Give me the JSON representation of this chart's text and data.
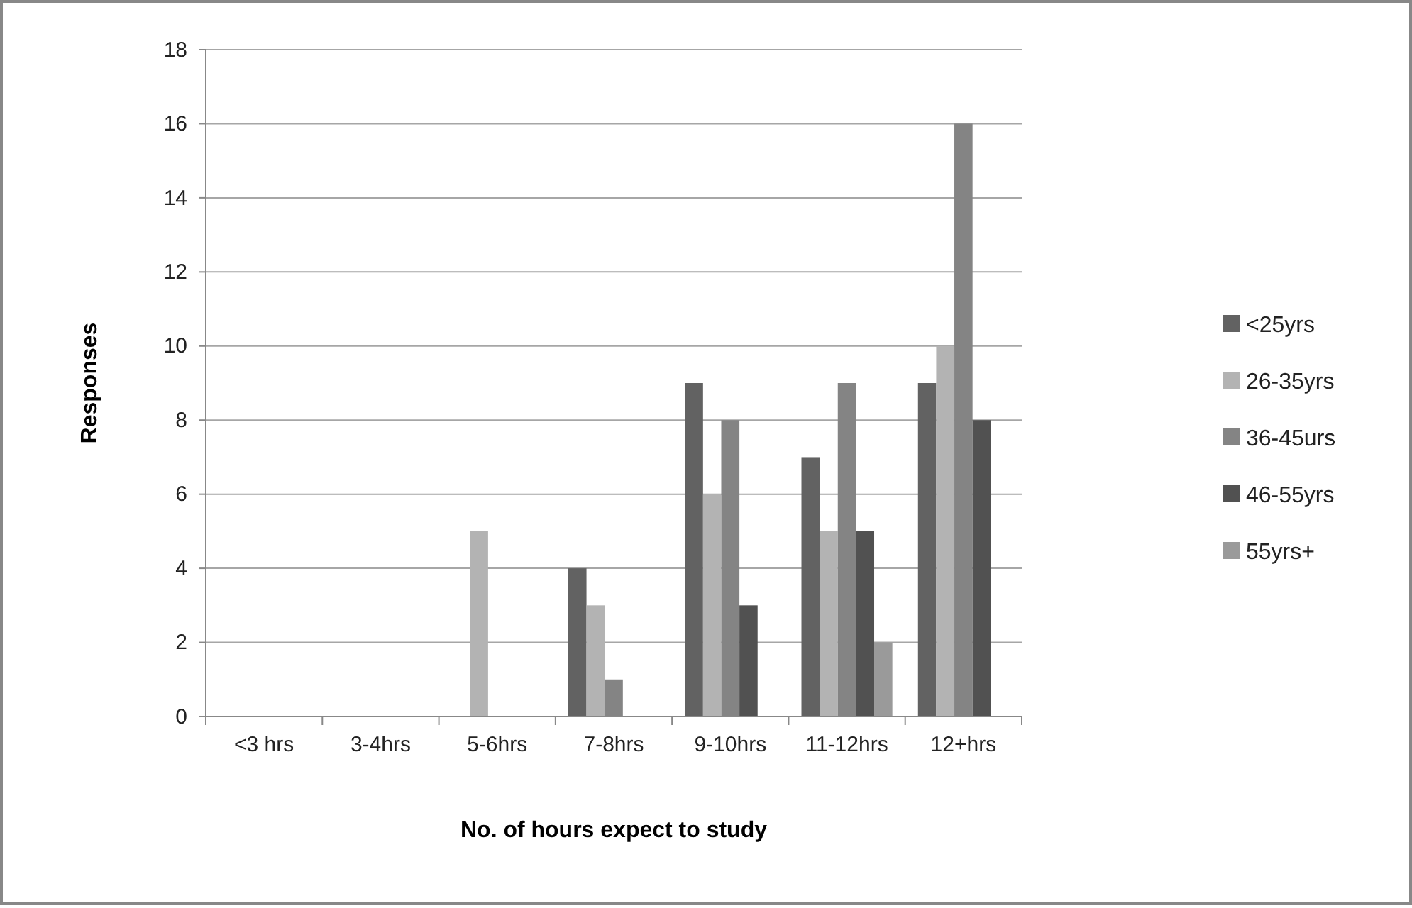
{
  "chart_data": {
    "type": "bar",
    "xlabel": "No. of hours expect to study",
    "ylabel": "Responses",
    "categories": [
      "<3 hrs",
      "3-4hrs",
      "5-6hrs",
      "7-8hrs",
      "9-10hrs",
      "11-12hrs",
      "12+hrs"
    ],
    "series": [
      {
        "name": "<25yrs",
        "color": "#626262",
        "values": [
          0,
          0,
          0,
          4,
          9,
          7,
          9
        ]
      },
      {
        "name": "26-35yrs",
        "color": "#b3b3b3",
        "values": [
          0,
          0,
          5,
          3,
          6,
          5,
          10
        ]
      },
      {
        "name": "36-45urs",
        "color": "#848484",
        "values": [
          0,
          0,
          0,
          1,
          8,
          9,
          16
        ]
      },
      {
        "name": "46-55yrs",
        "color": "#515151",
        "values": [
          0,
          0,
          0,
          0,
          3,
          5,
          8
        ]
      },
      {
        "name": "55yrs+",
        "color": "#9a9a9a",
        "values": [
          0,
          0,
          0,
          0,
          0,
          2,
          0
        ]
      }
    ],
    "ylim": [
      0,
      18
    ],
    "yticks": [
      0,
      2,
      4,
      6,
      8,
      10,
      12,
      14,
      16,
      18
    ],
    "grid": "y",
    "legend": "right"
  }
}
